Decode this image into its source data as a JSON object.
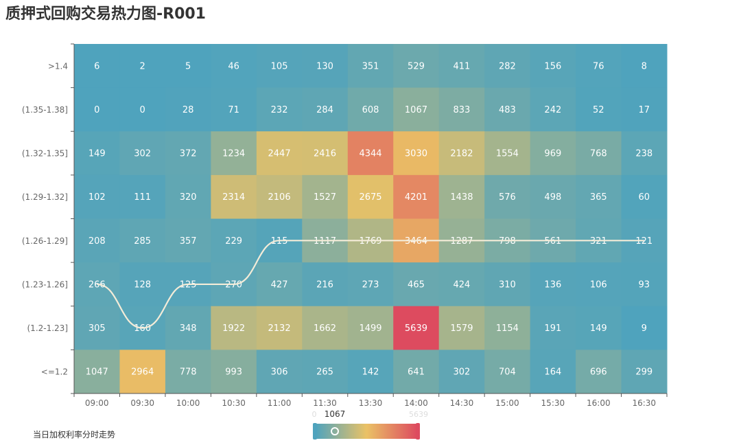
{
  "title": "质押式回购交易热力图-R001",
  "legend_label": "当日加权利率分时走势",
  "chart_data": {
    "type": "heatmap",
    "x_categories": [
      "09:00",
      "09:30",
      "10:00",
      "10:30",
      "11:00",
      "11:30",
      "13:30",
      "14:00",
      "14:30",
      "15:00",
      "15:30",
      "16:00",
      "16:30"
    ],
    "y_categories": [
      ">1.4",
      "(1.35-1.38]",
      "(1.32-1.35]",
      "(1.29-1.32]",
      "(1.26-1.29]",
      "(1.23-1.26]",
      "(1.2-1.23]",
      "<=1.2"
    ],
    "values": [
      [
        6,
        2,
        5,
        46,
        105,
        130,
        351,
        529,
        411,
        282,
        156,
        76,
        8
      ],
      [
        0,
        0,
        28,
        71,
        232,
        284,
        608,
        1067,
        833,
        483,
        242,
        52,
        17
      ],
      [
        149,
        302,
        372,
        1234,
        2447,
        2416,
        4344,
        3030,
        2182,
        1554,
        969,
        768,
        238
      ],
      [
        102,
        111,
        320,
        2314,
        2106,
        1527,
        2675,
        4201,
        1438,
        576,
        498,
        365,
        60
      ],
      [
        208,
        285,
        357,
        229,
        115,
        1117,
        1769,
        3464,
        1287,
        798,
        561,
        321,
        121
      ],
      [
        266,
        128,
        125,
        270,
        427,
        216,
        273,
        465,
        424,
        310,
        136,
        106,
        93
      ],
      [
        305,
        160,
        348,
        1922,
        2132,
        1662,
        1499,
        5639,
        1579,
        1154,
        191,
        149,
        9
      ],
      [
        1047,
        2964,
        778,
        993,
        306,
        265,
        142,
        641,
        302,
        704,
        164,
        696,
        299
      ]
    ],
    "visual_map": {
      "min": 0,
      "max": 5639,
      "current": 1067,
      "min_label": "0",
      "max_label": "5639",
      "current_label": "1067",
      "colors": [
        "#4fa3bd",
        "#eac266",
        "#dd4b5f"
      ]
    },
    "trend_line": {
      "name": "当日加权利率分时走势",
      "color": "#f4ecd8",
      "y_positions": [
        5,
        6,
        5,
        5,
        4,
        4,
        4,
        4,
        4,
        4,
        4,
        4,
        4
      ]
    }
  }
}
